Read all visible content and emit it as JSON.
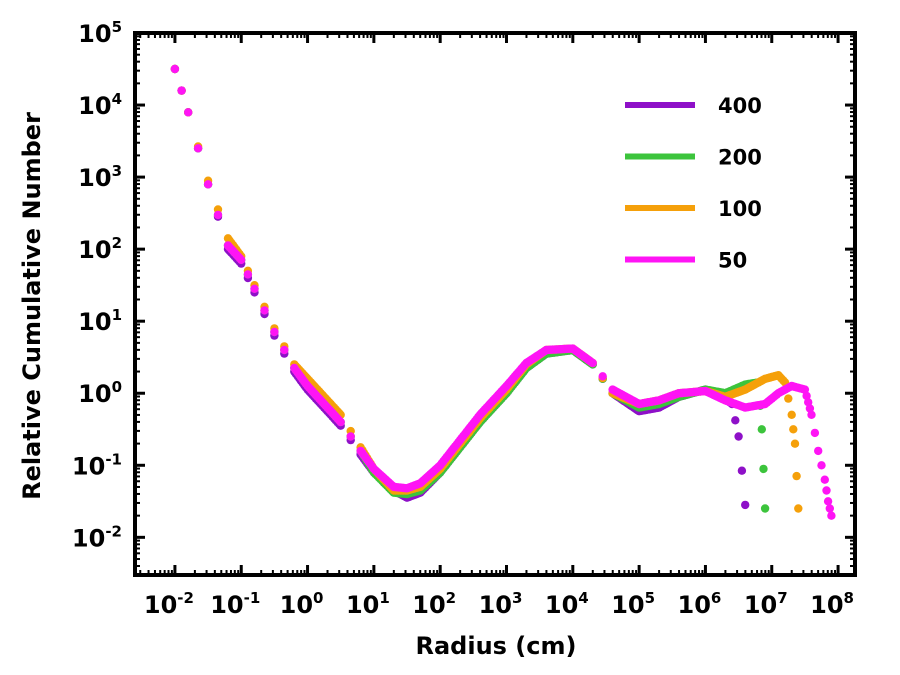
{
  "chart_data": {
    "type": "scatter",
    "title": "",
    "xlabel": "Radius (cm)",
    "ylabel": "Relative Cumulative Number",
    "xscale": "log",
    "yscale": "log",
    "xlim": [
      0.0025,
      180000000
    ],
    "ylim": [
      0.003,
      100000
    ],
    "grid": false,
    "legend_position": "top-right",
    "x_ticks": [
      {
        "base": "10",
        "exp": "-2",
        "value": 0.01
      },
      {
        "base": "10",
        "exp": "-1",
        "value": 0.1
      },
      {
        "base": "10",
        "exp": "0",
        "value": 1
      },
      {
        "base": "10",
        "exp": "1",
        "value": 10
      },
      {
        "base": "10",
        "exp": "2",
        "value": 100
      },
      {
        "base": "10",
        "exp": "3",
        "value": 1000
      },
      {
        "base": "10",
        "exp": "4",
        "value": 10000
      },
      {
        "base": "10",
        "exp": "5",
        "value": 100000
      },
      {
        "base": "10",
        "exp": "6",
        "value": 1000000
      },
      {
        "base": "10",
        "exp": "7",
        "value": 10000000
      },
      {
        "base": "10",
        "exp": "8",
        "value": 100000000
      }
    ],
    "y_ticks": [
      {
        "base": "10",
        "exp": "-2",
        "value": 0.01
      },
      {
        "base": "10",
        "exp": "-1",
        "value": 0.1
      },
      {
        "base": "10",
        "exp": "0",
        "value": 1
      },
      {
        "base": "10",
        "exp": "1",
        "value": 10
      },
      {
        "base": "10",
        "exp": "2",
        "value": 100
      },
      {
        "base": "10",
        "exp": "3",
        "value": 1000
      },
      {
        "base": "10",
        "exp": "4",
        "value": 10000
      },
      {
        "base": "10",
        "exp": "5",
        "value": 100000
      }
    ],
    "series": [
      {
        "name": "400",
        "color": "#8e10c8",
        "points": [
          [
            -2,
            4.5
          ],
          [
            -1.8,
            3.9
          ],
          [
            -1.5,
            2.9
          ],
          [
            -1.2,
            2.0
          ],
          [
            -1,
            1.8
          ],
          [
            -0.8,
            1.4
          ],
          [
            -0.5,
            0.8
          ],
          [
            -0.2,
            0.3
          ],
          [
            0,
            0.05
          ],
          [
            0.2,
            -0.15
          ],
          [
            0.5,
            -0.45
          ],
          [
            0.8,
            -0.85
          ],
          [
            1,
            -1.1
          ],
          [
            1.3,
            -1.35
          ],
          [
            1.5,
            -1.45
          ],
          [
            1.7,
            -1.38
          ],
          [
            2,
            -1.1
          ],
          [
            2.3,
            -0.75
          ],
          [
            2.6,
            -0.4
          ],
          [
            3,
            0
          ],
          [
            3.3,
            0.35
          ],
          [
            3.6,
            0.55
          ],
          [
            4,
            0.6
          ],
          [
            4.3,
            0.4
          ],
          [
            4.6,
            0
          ],
          [
            5,
            -0.25
          ],
          [
            5.3,
            -0.2
          ],
          [
            5.6,
            -0.05
          ],
          [
            6,
            0.05
          ],
          [
            6.2,
            0
          ],
          [
            6.4,
            -0.15
          ],
          [
            6.5,
            -0.6
          ],
          [
            6.6,
            -1.55
          ]
        ]
      },
      {
        "name": "200",
        "color": "#3cc43c",
        "points": [
          [
            -2,
            4.5
          ],
          [
            -1.8,
            3.9
          ],
          [
            -1.5,
            2.9
          ],
          [
            -1.2,
            2.05
          ],
          [
            -1,
            1.85
          ],
          [
            -0.8,
            1.45
          ],
          [
            -0.5,
            0.85
          ],
          [
            -0.2,
            0.35
          ],
          [
            0,
            0.1
          ],
          [
            0.2,
            -0.1
          ],
          [
            0.5,
            -0.4
          ],
          [
            0.8,
            -0.8
          ],
          [
            1,
            -1.1
          ],
          [
            1.3,
            -1.38
          ],
          [
            1.5,
            -1.4
          ],
          [
            1.7,
            -1.35
          ],
          [
            2,
            -1.1
          ],
          [
            2.3,
            -0.75
          ],
          [
            2.6,
            -0.4
          ],
          [
            3,
            0
          ],
          [
            3.3,
            0.35
          ],
          [
            3.6,
            0.55
          ],
          [
            4,
            0.6
          ],
          [
            4.3,
            0.4
          ],
          [
            4.6,
            0
          ],
          [
            5,
            -0.2
          ],
          [
            5.3,
            -0.15
          ],
          [
            5.6,
            -0.05
          ],
          [
            6,
            0.05
          ],
          [
            6.3,
            0
          ],
          [
            6.6,
            0.12
          ],
          [
            6.8,
            0.15
          ],
          [
            6.85,
            -0.5
          ],
          [
            6.9,
            -1.6
          ]
        ]
      },
      {
        "name": "100",
        "color": "#f5a00a",
        "points": [
          [
            -2,
            4.5
          ],
          [
            -1.8,
            3.9
          ],
          [
            -1.5,
            2.95
          ],
          [
            -1.2,
            2.15
          ],
          [
            -1,
            1.9
          ],
          [
            -0.8,
            1.5
          ],
          [
            -0.5,
            0.9
          ],
          [
            -0.2,
            0.4
          ],
          [
            0,
            0.2
          ],
          [
            0.2,
            0
          ],
          [
            0.5,
            -0.3
          ],
          [
            0.8,
            -0.75
          ],
          [
            1,
            -1.05
          ],
          [
            1.3,
            -1.35
          ],
          [
            1.5,
            -1.35
          ],
          [
            1.7,
            -1.3
          ],
          [
            2,
            -1.05
          ],
          [
            2.3,
            -0.7
          ],
          [
            2.6,
            -0.35
          ],
          [
            3,
            0.05
          ],
          [
            3.3,
            0.4
          ],
          [
            3.6,
            0.6
          ],
          [
            4,
            0.62
          ],
          [
            4.3,
            0.42
          ],
          [
            4.6,
            0
          ],
          [
            5,
            -0.15
          ],
          [
            5.3,
            -0.1
          ],
          [
            5.6,
            0
          ],
          [
            6,
            0.03
          ],
          [
            6.3,
            -0.05
          ],
          [
            6.6,
            0.05
          ],
          [
            6.9,
            0.2
          ],
          [
            7.1,
            0.25
          ],
          [
            7.2,
            0.15
          ],
          [
            7.3,
            -0.3
          ],
          [
            7.35,
            -0.7
          ],
          [
            7.4,
            -1.6
          ]
        ]
      },
      {
        "name": "50",
        "color": "#ff14f5",
        "points": [
          [
            -2,
            4.5
          ],
          [
            -1.8,
            3.9
          ],
          [
            -1.5,
            2.9
          ],
          [
            -1.2,
            2.05
          ],
          [
            -1,
            1.85
          ],
          [
            -0.8,
            1.45
          ],
          [
            -0.5,
            0.85
          ],
          [
            -0.2,
            0.35
          ],
          [
            0,
            0.1
          ],
          [
            0.2,
            -0.1
          ],
          [
            0.5,
            -0.4
          ],
          [
            0.8,
            -0.8
          ],
          [
            1,
            -1.05
          ],
          [
            1.3,
            -1.3
          ],
          [
            1.5,
            -1.32
          ],
          [
            1.7,
            -1.25
          ],
          [
            2,
            -1.0
          ],
          [
            2.3,
            -0.65
          ],
          [
            2.6,
            -0.3
          ],
          [
            3,
            0.1
          ],
          [
            3.3,
            0.42
          ],
          [
            3.6,
            0.6
          ],
          [
            4,
            0.62
          ],
          [
            4.3,
            0.42
          ],
          [
            4.6,
            0.05
          ],
          [
            5,
            -0.15
          ],
          [
            5.3,
            -0.1
          ],
          [
            5.6,
            0
          ],
          [
            6,
            0.03
          ],
          [
            6.3,
            -0.1
          ],
          [
            6.6,
            -0.2
          ],
          [
            6.9,
            -0.15
          ],
          [
            7.1,
            0
          ],
          [
            7.3,
            0.1
          ],
          [
            7.5,
            0.05
          ],
          [
            7.6,
            -0.3
          ],
          [
            7.7,
            -0.8
          ],
          [
            7.8,
            -1.2
          ],
          [
            7.85,
            -1.5
          ],
          [
            7.9,
            -1.7
          ]
        ]
      }
    ]
  }
}
